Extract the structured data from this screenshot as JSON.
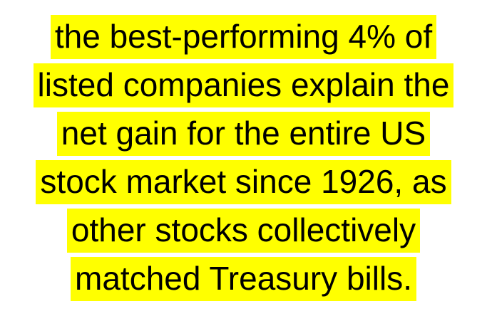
{
  "highlight_color": "#ffff00",
  "text_color": "#000000",
  "quote": {
    "lines": [
      "the best-performing 4% of",
      "listed companies explain the",
      "net gain for the entire US",
      "stock market since 1926, as",
      "other stocks collectively",
      "matched Treasury bills."
    ]
  }
}
